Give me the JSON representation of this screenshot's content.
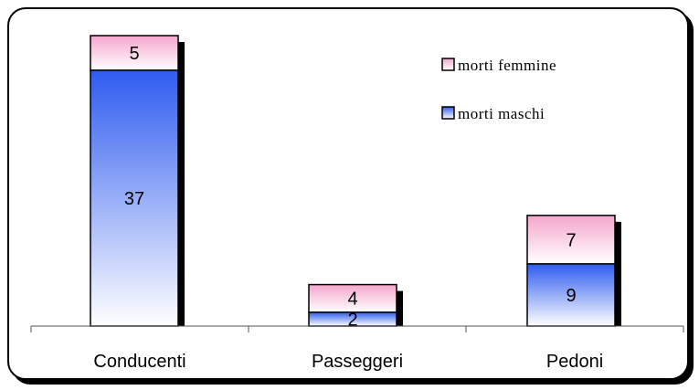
{
  "chart_data": {
    "type": "bar",
    "stacked": true,
    "categories": [
      "Conducenti",
      "Passeggeri",
      "Pedoni"
    ],
    "series": [
      {
        "name": "morti maschi",
        "values": [
          37,
          2,
          9
        ],
        "color_top": "#2f5cf0",
        "color_bottom": "#ffffff"
      },
      {
        "name": "morti femmine",
        "values": [
          5,
          4,
          7
        ],
        "color_top": "#f4a6cc",
        "color_bottom": "#ffffff"
      }
    ],
    "legend_order": [
      "morti femmine",
      "morti maschi"
    ],
    "legend_position": "top-right",
    "ylim": [
      0,
      42
    ],
    "grid": false,
    "title": "",
    "xlabel": "",
    "ylabel": ""
  }
}
